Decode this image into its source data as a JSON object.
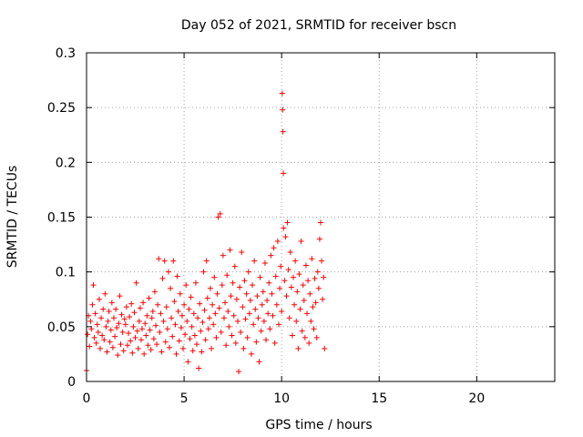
{
  "chart_data": {
    "type": "scatter",
    "title": "Day 052 of 2021, SRMTID for receiver bscn",
    "xlabel": "GPS time / hours",
    "ylabel": "SRMTID / TECUs",
    "xlim": [
      0,
      24
    ],
    "ylim": [
      0,
      0.3
    ],
    "xticks": [
      0,
      5,
      10,
      15,
      20
    ],
    "xtick_labels": [
      "0",
      "5",
      "10",
      "15",
      "20"
    ],
    "yticks": [
      0,
      0.05,
      0.1,
      0.15,
      0.2,
      0.25,
      0.3
    ],
    "ytick_labels": [
      "0",
      "0.05",
      "0.1",
      "0.15",
      "0.2",
      "0.25",
      "0.3"
    ],
    "grid": true,
    "marker": "+",
    "color": "#ff0000",
    "series": [
      {
        "name": "SRMTID",
        "points": [
          [
            0.0,
            0.01
          ],
          [
            0.05,
            0.043
          ],
          [
            0.1,
            0.06
          ],
          [
            0.15,
            0.032
          ],
          [
            0.2,
            0.055
          ],
          [
            0.25,
            0.048
          ],
          [
            0.3,
            0.07
          ],
          [
            0.35,
            0.088
          ],
          [
            0.4,
            0.04
          ],
          [
            0.45,
            0.062
          ],
          [
            0.5,
            0.035
          ],
          [
            0.55,
            0.052
          ],
          [
            0.6,
            0.045
          ],
          [
            0.65,
            0.075
          ],
          [
            0.7,
            0.03
          ],
          [
            0.75,
            0.058
          ],
          [
            0.8,
            0.042
          ],
          [
            0.85,
            0.066
          ],
          [
            0.9,
            0.038
          ],
          [
            0.95,
            0.08
          ],
          [
            1.0,
            0.05
          ],
          [
            1.05,
            0.027
          ],
          [
            1.1,
            0.055
          ],
          [
            1.15,
            0.064
          ],
          [
            1.2,
            0.036
          ],
          [
            1.25,
            0.047
          ],
          [
            1.3,
            0.072
          ],
          [
            1.35,
            0.031
          ],
          [
            1.4,
            0.058
          ],
          [
            1.45,
            0.041
          ],
          [
            1.5,
            0.066
          ],
          [
            1.55,
            0.049
          ],
          [
            1.6,
            0.024
          ],
          [
            1.65,
            0.053
          ],
          [
            1.7,
            0.078
          ],
          [
            1.75,
            0.034
          ],
          [
            1.8,
            0.061
          ],
          [
            1.85,
            0.045
          ],
          [
            1.9,
            0.028
          ],
          [
            1.95,
            0.057
          ],
          [
            2.0,
            0.052
          ],
          [
            2.05,
            0.068
          ],
          [
            2.1,
            0.033
          ],
          [
            2.15,
            0.044
          ],
          [
            2.2,
            0.059
          ],
          [
            2.25,
            0.037
          ],
          [
            2.3,
            0.071
          ],
          [
            2.35,
            0.026
          ],
          [
            2.4,
            0.05
          ],
          [
            2.45,
            0.063
          ],
          [
            2.5,
            0.04
          ],
          [
            2.55,
            0.09
          ],
          [
            2.6,
            0.046
          ],
          [
            2.65,
            0.03
          ],
          [
            2.7,
            0.055
          ],
          [
            2.75,
            0.067
          ],
          [
            2.8,
            0.038
          ],
          [
            2.85,
            0.048
          ],
          [
            2.9,
            0.072
          ],
          [
            2.95,
            0.025
          ],
          [
            3.0,
            0.053
          ],
          [
            3.05,
            0.042
          ],
          [
            3.1,
            0.06
          ],
          [
            3.15,
            0.033
          ],
          [
            3.2,
            0.076
          ],
          [
            3.25,
            0.047
          ],
          [
            3.3,
            0.029
          ],
          [
            3.35,
            0.058
          ],
          [
            3.4,
            0.064
          ],
          [
            3.45,
            0.039
          ],
          [
            3.5,
            0.082
          ],
          [
            3.55,
            0.051
          ],
          [
            3.6,
            0.034
          ],
          [
            3.65,
            0.07
          ],
          [
            3.7,
            0.112
          ],
          [
            3.75,
            0.045
          ],
          [
            3.8,
            0.062
          ],
          [
            3.85,
            0.027
          ],
          [
            3.9,
            0.094
          ],
          [
            3.95,
            0.055
          ],
          [
            4.0,
            0.11
          ],
          [
            4.05,
            0.036
          ],
          [
            4.1,
            0.068
          ],
          [
            4.15,
            0.048
          ],
          [
            4.2,
            0.1
          ],
          [
            4.25,
            0.031
          ],
          [
            4.3,
            0.085
          ],
          [
            4.35,
            0.058
          ],
          [
            4.4,
            0.041
          ],
          [
            4.45,
            0.11
          ],
          [
            4.5,
            0.073
          ],
          [
            4.55,
            0.052
          ],
          [
            4.6,
            0.025
          ],
          [
            4.65,
            0.096
          ],
          [
            4.7,
            0.064
          ],
          [
            4.75,
            0.037
          ],
          [
            4.8,
            0.08
          ],
          [
            4.85,
            0.049
          ],
          [
            4.9,
            0.06
          ],
          [
            4.95,
            0.03
          ],
          [
            5.0,
            0.07
          ],
          [
            5.05,
            0.043
          ],
          [
            5.1,
            0.088
          ],
          [
            5.15,
            0.055
          ],
          [
            5.2,
            0.018
          ],
          [
            5.25,
            0.066
          ],
          [
            5.3,
            0.039
          ],
          [
            5.35,
            0.077
          ],
          [
            5.4,
            0.05
          ],
          [
            5.45,
            0.028
          ],
          [
            5.5,
            0.062
          ],
          [
            5.55,
            0.042
          ],
          [
            5.6,
            0.09
          ],
          [
            5.65,
            0.034
          ],
          [
            5.7,
            0.058
          ],
          [
            5.75,
            0.012
          ],
          [
            5.8,
            0.071
          ],
          [
            5.85,
            0.046
          ],
          [
            5.9,
            0.027
          ],
          [
            5.95,
            0.054
          ],
          [
            6.0,
            0.1
          ],
          [
            6.05,
            0.065
          ],
          [
            6.1,
            0.038
          ],
          [
            6.15,
            0.11
          ],
          [
            6.2,
            0.076
          ],
          [
            6.25,
            0.048
          ],
          [
            6.3,
            0.058
          ],
          [
            6.35,
            0.085
          ],
          [
            6.4,
            0.03
          ],
          [
            6.45,
            0.07
          ],
          [
            6.5,
            0.052
          ],
          [
            6.55,
            0.095
          ],
          [
            6.6,
            0.062
          ],
          [
            6.65,
            0.04
          ],
          [
            6.7,
            0.08
          ],
          [
            6.75,
            0.15
          ],
          [
            6.8,
            0.067
          ],
          [
            6.85,
            0.153
          ],
          [
            6.9,
            0.045
          ],
          [
            6.95,
            0.088
          ],
          [
            7.0,
            0.115
          ],
          [
            7.05,
            0.058
          ],
          [
            7.1,
            0.072
          ],
          [
            7.15,
            0.033
          ],
          [
            7.2,
            0.097
          ],
          [
            7.25,
            0.064
          ],
          [
            7.3,
            0.05
          ],
          [
            7.35,
            0.12
          ],
          [
            7.4,
            0.078
          ],
          [
            7.45,
            0.042
          ],
          [
            7.5,
            0.09
          ],
          [
            7.55,
            0.06
          ],
          [
            7.6,
            0.105
          ],
          [
            7.65,
            0.035
          ],
          [
            7.7,
            0.075
          ],
          [
            7.75,
            0.055
          ],
          [
            7.8,
            0.009
          ],
          [
            7.85,
            0.086
          ],
          [
            7.9,
            0.045
          ],
          [
            7.95,
            0.118
          ],
          [
            8.0,
            0.068
          ],
          [
            8.05,
            0.03
          ],
          [
            8.1,
            0.092
          ],
          [
            8.15,
            0.057
          ],
          [
            8.2,
            0.08
          ],
          [
            8.25,
            0.04
          ],
          [
            8.3,
            0.1
          ],
          [
            8.35,
            0.062
          ],
          [
            8.4,
            0.074
          ],
          [
            8.45,
            0.025
          ],
          [
            8.5,
            0.088
          ],
          [
            8.55,
            0.052
          ],
          [
            8.6,
            0.11
          ],
          [
            8.65,
            0.066
          ],
          [
            8.7,
            0.036
          ],
          [
            8.75,
            0.078
          ],
          [
            8.8,
            0.058
          ],
          [
            8.85,
            0.018
          ],
          [
            8.9,
            0.095
          ],
          [
            8.95,
            0.046
          ],
          [
            9.0,
            0.07
          ],
          [
            9.05,
            0.082
          ],
          [
            9.1,
            0.055
          ],
          [
            9.15,
            0.108
          ],
          [
            9.2,
            0.038
          ],
          [
            9.25,
            0.074
          ],
          [
            9.3,
            0.062
          ],
          [
            9.35,
            0.09
          ],
          [
            9.4,
            0.048
          ],
          [
            9.45,
            0.115
          ],
          [
            9.5,
            0.08
          ],
          [
            9.55,
            0.06
          ],
          [
            9.6,
            0.122
          ],
          [
            9.65,
            0.035
          ],
          [
            9.7,
            0.096
          ],
          [
            9.75,
            0.07
          ],
          [
            9.8,
            0.128
          ],
          [
            9.85,
            0.052
          ],
          [
            9.9,
            0.085
          ],
          [
            9.95,
            0.105
          ],
          [
            10.0,
            0.064
          ],
          [
            10.03,
            0.263
          ],
          [
            10.05,
            0.248
          ],
          [
            10.07,
            0.228
          ],
          [
            10.09,
            0.19
          ],
          [
            10.1,
            0.14
          ],
          [
            10.15,
            0.092
          ],
          [
            10.2,
            0.132
          ],
          [
            10.25,
            0.078
          ],
          [
            10.3,
            0.145
          ],
          [
            10.35,
            0.102
          ],
          [
            10.4,
            0.058
          ],
          [
            10.45,
            0.118
          ],
          [
            10.5,
            0.086
          ],
          [
            10.55,
            0.042
          ],
          [
            10.6,
            0.095
          ],
          [
            10.65,
            0.07
          ],
          [
            10.7,
            0.11
          ],
          [
            10.75,
            0.055
          ],
          [
            10.8,
            0.082
          ],
          [
            10.85,
            0.03
          ],
          [
            10.9,
            0.098
          ],
          [
            10.95,
            0.066
          ],
          [
            11.0,
            0.128
          ],
          [
            11.05,
            0.046
          ],
          [
            11.1,
            0.088
          ],
          [
            11.15,
            0.074
          ],
          [
            11.2,
            0.04
          ],
          [
            11.25,
            0.106
          ],
          [
            11.3,
            0.062
          ],
          [
            11.35,
            0.092
          ],
          [
            11.4,
            0.035
          ],
          [
            11.45,
            0.08
          ],
          [
            11.5,
            0.055
          ],
          [
            11.55,
            0.112
          ],
          [
            11.6,
            0.068
          ],
          [
            11.65,
            0.048
          ],
          [
            11.7,
            0.094
          ],
          [
            11.75,
            0.072
          ],
          [
            11.8,
            0.04
          ],
          [
            11.85,
            0.1
          ],
          [
            11.9,
            0.085
          ],
          [
            11.95,
            0.13
          ],
          [
            12.0,
            0.145
          ],
          [
            12.05,
            0.11
          ],
          [
            12.1,
            0.075
          ],
          [
            12.15,
            0.095
          ],
          [
            12.2,
            0.03
          ]
        ]
      }
    ]
  }
}
